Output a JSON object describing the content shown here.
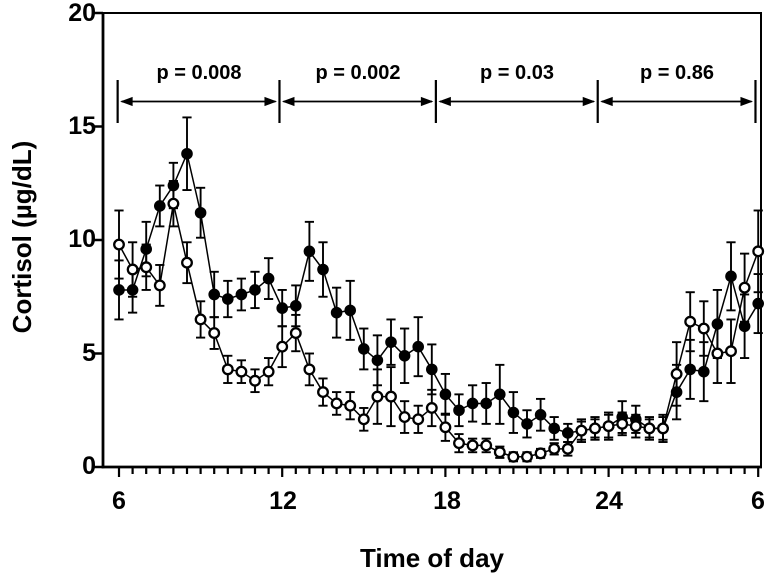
{
  "figure": {
    "background": "#ffffff",
    "ink_color": "#000000",
    "y_tick_labels": [
      "20",
      "15",
      "10",
      "5",
      "0"
    ],
    "x_tick_labels": [
      "6",
      "12",
      "18",
      "24",
      "6"
    ]
  },
  "chart_data": {
    "type": "line",
    "title": "",
    "xlabel": "Time of day",
    "ylabel": "Cortisol (µg/dL)",
    "ylim": [
      0,
      20
    ],
    "y_ticks": [
      0,
      5,
      10,
      15,
      20
    ],
    "x_major_tick_hours": [
      6,
      12,
      18,
      24,
      29.5
    ],
    "x_minor_tick_step_hours": 0.5,
    "grid": false,
    "legend": "none",
    "x": [
      6,
      6.5,
      7,
      7.5,
      8,
      8.5,
      9,
      9.5,
      10,
      10.5,
      11,
      11.5,
      12,
      12.5,
      13,
      13.5,
      14,
      14.5,
      15,
      15.5,
      16,
      16.5,
      17,
      17.5,
      18,
      18.5,
      19,
      19.5,
      20,
      20.5,
      21,
      21.5,
      22,
      22.5,
      23,
      23.5,
      24,
      24.5,
      25,
      25.5,
      26,
      26.5,
      27,
      27.5,
      28,
      28.5,
      29,
      29.5
    ],
    "series": [
      {
        "name": "filled-circles",
        "marker": "filled-circle",
        "color": "#000000",
        "values": [
          7.8,
          7.8,
          9.6,
          11.5,
          12.4,
          13.8,
          11.2,
          7.6,
          7.4,
          7.6,
          7.8,
          8.3,
          7.0,
          7.1,
          9.5,
          8.7,
          6.8,
          6.9,
          5.2,
          4.7,
          5.5,
          4.9,
          5.3,
          4.3,
          3.2,
          2.5,
          2.8,
          2.8,
          3.2,
          2.4,
          1.9,
          2.3,
          1.7,
          1.5,
          1.6,
          1.7,
          1.8,
          2.2,
          2.1,
          1.7,
          1.7,
          3.3,
          4.3,
          4.2,
          6.3,
          8.4,
          6.2,
          7.2
        ],
        "errors": [
          1.3,
          1.0,
          1.2,
          0.9,
          1.0,
          1.6,
          1.1,
          1.0,
          0.8,
          0.7,
          0.8,
          0.9,
          0.8,
          0.9,
          1.3,
          1.2,
          1.1,
          1.3,
          0.9,
          1.1,
          1.0,
          1.2,
          1.3,
          1.1,
          0.9,
          0.7,
          0.8,
          0.9,
          1.3,
          0.9,
          0.6,
          0.7,
          0.5,
          0.4,
          0.5,
          0.5,
          0.6,
          0.7,
          0.6,
          0.5,
          0.6,
          1.2,
          1.3,
          1.3,
          1.5,
          1.5,
          1.4,
          1.3
        ]
      },
      {
        "name": "open-circles",
        "marker": "open-circle",
        "color": "#000000",
        "fill": "#ffffff",
        "values": [
          9.8,
          8.7,
          8.8,
          8.0,
          11.6,
          9.0,
          6.5,
          5.9,
          4.3,
          4.2,
          3.8,
          4.2,
          5.3,
          5.9,
          4.3,
          3.3,
          2.8,
          2.7,
          2.1,
          3.1,
          3.1,
          2.2,
          2.1,
          2.6,
          1.75,
          1.05,
          0.95,
          0.95,
          0.65,
          0.45,
          0.45,
          0.6,
          0.8,
          0.8,
          1.6,
          1.7,
          1.8,
          1.9,
          1.8,
          1.7,
          1.7,
          4.1,
          6.4,
          6.1,
          5.0,
          5.1,
          7.9,
          9.5
        ],
        "errors": [
          1.5,
          1.2,
          1.0,
          0.9,
          1.0,
          0.9,
          0.8,
          0.7,
          0.6,
          0.5,
          0.5,
          0.6,
          0.9,
          0.8,
          0.7,
          0.6,
          0.5,
          0.6,
          0.5,
          1.2,
          1.3,
          0.7,
          0.6,
          0.8,
          0.6,
          0.4,
          0.3,
          0.3,
          0.25,
          0.2,
          0.2,
          0.2,
          0.25,
          0.3,
          0.4,
          0.4,
          0.5,
          0.5,
          0.5,
          0.4,
          0.5,
          1.4,
          1.3,
          1.2,
          1.3,
          1.4,
          1.5,
          1.8
        ]
      }
    ],
    "annotations": [
      {
        "label": "p = 0.008",
        "from_hour": 5.95,
        "to_hour": 11.9
      },
      {
        "label": "p = 0.002",
        "from_hour": 11.9,
        "to_hour": 17.65
      },
      {
        "label": "p = 0.03",
        "from_hour": 17.65,
        "to_hour": 23.6
      },
      {
        "label": "p = 0.86",
        "from_hour": 23.6,
        "to_hour": 29.4
      }
    ]
  }
}
